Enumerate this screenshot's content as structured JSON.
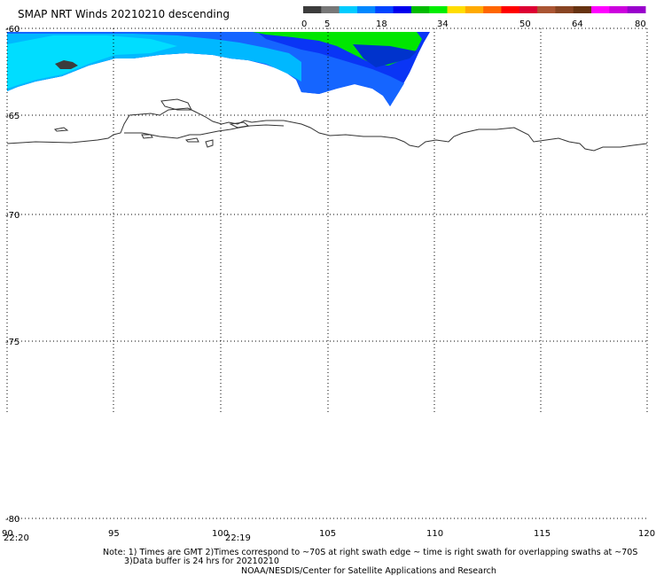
{
  "title": "SMAP NRT Winds  20210210 descending",
  "colorbar": {
    "ticks": [
      "0",
      "5",
      "18",
      "34",
      "50",
      "64",
      "80"
    ],
    "segments": [
      "#3c3c3c",
      "#777777",
      "#00ccff",
      "#0088ff",
      "#0044ff",
      "#0000ee",
      "#00bb00",
      "#00ee00",
      "#ffdd00",
      "#ffaa00",
      "#ff6600",
      "#ff0000",
      "#dd0033",
      "#aa5533",
      "#884422",
      "#663311",
      "#ff00ff",
      "#cc00dd",
      "#9900cc"
    ]
  },
  "lat_labels": [
    "-60",
    "-65",
    "-70",
    "-75",
    "-80"
  ],
  "lon_labels": [
    "90",
    "95",
    "100",
    "105",
    "110",
    "115",
    "120"
  ],
  "times": [
    "22:20",
    "22:19"
  ],
  "notes": [
    "Note: 1) Times are GMT 2)Times correspond to ~70S at right swath edge ~ time is right swath for overlapping swaths at ~70S",
    "3)Data buffer is 24 hrs for 20210210",
    "NOAA/NESDIS/Center for Satellite Applications and Research"
  ]
}
